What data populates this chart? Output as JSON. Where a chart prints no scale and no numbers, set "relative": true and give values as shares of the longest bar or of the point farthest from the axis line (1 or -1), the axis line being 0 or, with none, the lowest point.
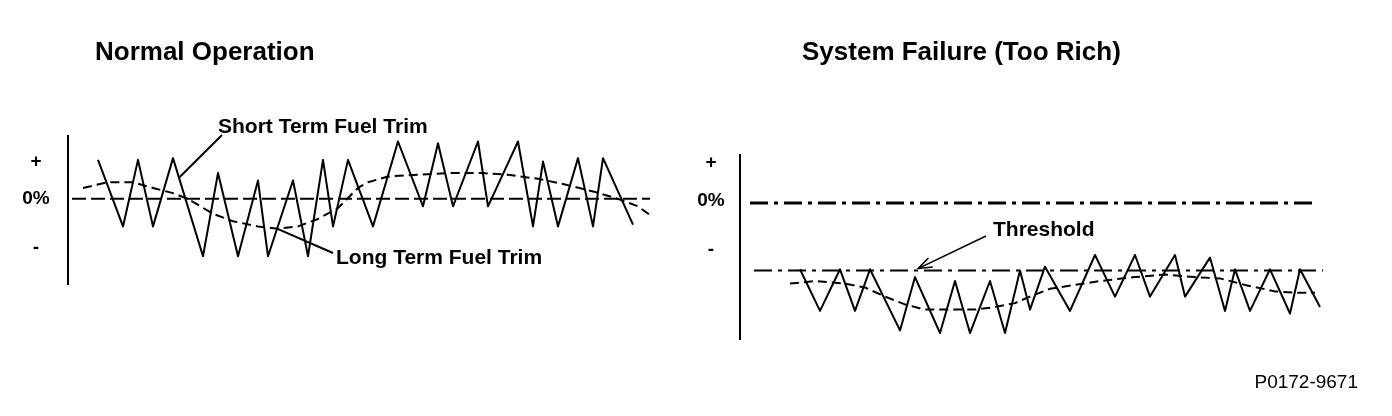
{
  "chart_data": [
    {
      "type": "line",
      "title": "Normal Operation",
      "relative": true,
      "categories": [
        null,
        null,
        null,
        null,
        null,
        null,
        null,
        null,
        null,
        null,
        null,
        null,
        null,
        null,
        null,
        null,
        null,
        null,
        null,
        null,
        null,
        null,
        null,
        null,
        null,
        null,
        null,
        null,
        null,
        null,
        null,
        null,
        null,
        null,
        null,
        null,
        null,
        null,
        null,
        null,
        null,
        null,
        null,
        null,
        null,
        null,
        null,
        null,
        null,
        null,
        null,
        null,
        null,
        null,
        null,
        null,
        null,
        null,
        null,
        null,
        null,
        null,
        null,
        null,
        null,
        null,
        null,
        null,
        null,
        null,
        null,
        null,
        null,
        null,
        null,
        null,
        null,
        null,
        null,
        null,
        null,
        null,
        null,
        null,
        null,
        null,
        null,
        null,
        null,
        null,
        null,
        null,
        null,
        null,
        null,
        null,
        null,
        null,
        null,
        null,
        null,
        null,
        null,
        null,
        null,
        null,
        null,
        null,
        null,
        null,
        null,
        null,
        null,
        null,
        null,
        null,
        null,
        null,
        null
      ],
      "series": [
        {
          "name": "Short Term Fuel Trim",
          "color": "#000000",
          "line_style": "solid",
          "values": [
            null,
            null,
            null,
            null,
            null,
            null,
            0.68,
            null,
            null,
            null,
            null,
            -0.48,
            null,
            null,
            0.68,
            null,
            null,
            -0.48,
            null,
            null,
            null,
            0.71,
            null,
            null,
            null,
            null,
            null,
            -1,
            null,
            null,
            0.45,
            null,
            null,
            null,
            -1,
            null,
            null,
            null,
            0.32,
            null,
            -1,
            null,
            null,
            null,
            null,
            0.32,
            null,
            null,
            -1,
            null,
            null,
            0.68,
            null,
            -0.48,
            null,
            null,
            0.68,
            null,
            null,
            null,
            null,
            -0.48,
            null,
            null,
            null,
            null,
            1,
            null,
            null,
            null,
            null,
            -0.13,
            null,
            null,
            0.97,
            null,
            null,
            -0.13,
            null,
            null,
            null,
            null,
            1,
            null,
            -0.13,
            null,
            null,
            null,
            null,
            null,
            1,
            null,
            null,
            -0.48,
            null,
            0.65,
            null,
            null,
            -0.48,
            null,
            null,
            null,
            0.71,
            null,
            null,
            -0.48,
            null,
            0.71,
            null,
            null,
            null,
            null,
            null,
            -0.45,
            null,
            null,
            null,
            null,
            null
          ]
        },
        {
          "name": "Long Term Fuel Trim",
          "color": "#000000",
          "line_style": "dashed",
          "values": [
            null,
            null,
            null,
            0.19,
            null,
            null,
            null,
            null,
            0.29,
            null,
            null,
            null,
            null,
            0.29,
            null,
            null,
            null,
            0.19,
            null,
            null,
            null,
            0.1,
            null,
            null,
            0,
            null,
            null,
            null,
            null,
            -0.26,
            null,
            null,
            null,
            -0.39,
            null,
            null,
            null,
            null,
            -0.48,
            null,
            null,
            null,
            -0.52,
            null,
            null,
            null,
            -0.48,
            null,
            null,
            null,
            -0.35,
            null,
            null,
            null,
            -0.16,
            null,
            null,
            null,
            0.19,
            null,
            0.29,
            null,
            null,
            null,
            0.39,
            null,
            null,
            null,
            null,
            null,
            0.42,
            null,
            null,
            null,
            null,
            null,
            0.45,
            null,
            null,
            null,
            null,
            null,
            null,
            0.45,
            null,
            null,
            null,
            null,
            0.42,
            null,
            null,
            null,
            null,
            null,
            0.35,
            null,
            null,
            null,
            null,
            0.26,
            null,
            null,
            null,
            null,
            null,
            0.13,
            null,
            null,
            null,
            null,
            0,
            null,
            null,
            null,
            -0.13,
            null,
            null,
            -0.32,
            null
          ]
        }
      ],
      "ref_lines": [
        {
          "axis": "y",
          "value": 0,
          "color": "#000000",
          "line_style": "dashed"
        }
      ],
      "annotations": [
        "+",
        "0%",
        "-"
      ],
      "marker": "none"
    },
    {
      "type": "line",
      "title": "System Failure (Too Rich)",
      "relative": true,
      "categories": [
        null,
        null,
        null,
        null,
        null,
        null,
        null,
        null,
        null,
        null,
        null,
        null,
        null,
        null,
        null,
        null,
        null,
        null,
        null,
        null,
        null,
        null,
        null,
        null,
        null,
        null,
        null,
        null,
        null,
        null,
        null,
        null,
        null,
        null,
        null,
        null,
        null,
        null,
        null,
        null,
        null,
        null,
        null,
        null,
        null,
        null,
        null,
        null,
        null,
        null,
        null,
        null,
        null,
        null,
        null,
        null,
        null,
        null,
        null,
        null,
        null,
        null,
        null,
        null,
        null,
        null,
        null,
        null,
        null,
        null,
        null,
        null,
        null,
        null,
        null,
        null,
        null,
        null,
        null,
        null,
        null,
        null,
        null,
        null,
        null,
        null,
        null,
        null,
        null,
        null,
        null,
        null,
        null,
        null,
        null,
        null,
        null,
        null,
        null,
        null,
        null,
        null,
        null,
        null,
        null,
        null,
        null,
        null,
        null,
        null,
        null,
        null,
        null,
        null,
        null,
        null,
        null,
        null,
        null
      ],
      "series": [
        {
          "color": "#000000",
          "line_style": "solid",
          "values": [
            null,
            null,
            null,
            null,
            null,
            null,
            null,
            null,
            null,
            null,
            null,
            null,
            -0.51,
            null,
            null,
            null,
            -0.83,
            null,
            null,
            null,
            -0.51,
            null,
            null,
            -0.83,
            null,
            null,
            -0.51,
            null,
            null,
            null,
            null,
            null,
            -0.98,
            null,
            null,
            -0.57,
            null,
            null,
            null,
            null,
            -1,
            null,
            null,
            -0.6,
            null,
            null,
            -1,
            null,
            null,
            null,
            -0.6,
            null,
            null,
            -1,
            null,
            null,
            -0.52,
            null,
            -0.82,
            null,
            null,
            -0.49,
            null,
            null,
            null,
            null,
            -0.83,
            null,
            null,
            null,
            null,
            -0.4,
            null,
            null,
            null,
            -0.72,
            null,
            null,
            null,
            -0.4,
            null,
            null,
            -0.72,
            null,
            null,
            null,
            null,
            -0.4,
            null,
            -0.72,
            null,
            null,
            null,
            null,
            -0.42,
            null,
            null,
            -0.83,
            null,
            -0.51,
            null,
            null,
            -0.83,
            null,
            null,
            null,
            -0.51,
            null,
            null,
            null,
            -0.85,
            null,
            -0.51,
            null,
            null,
            null,
            -0.8,
            null,
            null
          ]
        },
        {
          "color": "#000000",
          "line_style": "dashed",
          "values": [
            null,
            null,
            null,
            null,
            null,
            null,
            null,
            null,
            null,
            null,
            -0.62,
            null,
            null,
            null,
            null,
            -0.6,
            null,
            null,
            null,
            null,
            null,
            -0.62,
            null,
            null,
            null,
            -0.65,
            null,
            null,
            null,
            -0.72,
            null,
            null,
            null,
            -0.78,
            null,
            null,
            null,
            -0.82,
            null,
            null,
            null,
            -0.82,
            null,
            null,
            null,
            null,
            null,
            -0.82,
            null,
            null,
            null,
            -0.8,
            null,
            null,
            null,
            -0.77,
            null,
            null,
            -0.72,
            null,
            null,
            null,
            -0.66,
            null,
            null,
            null,
            null,
            -0.63,
            null,
            null,
            null,
            null,
            -0.6,
            null,
            null,
            null,
            null,
            null,
            null,
            -0.57,
            null,
            null,
            null,
            null,
            null,
            -0.55,
            null,
            null,
            null,
            null,
            null,
            -0.57,
            null,
            null,
            null,
            null,
            -0.58,
            null,
            null,
            null,
            null,
            -0.63,
            null,
            null,
            null,
            null,
            null,
            -0.68,
            null,
            null,
            null,
            -0.69,
            null,
            null,
            null,
            -0.69,
            null,
            null,
            null
          ]
        }
      ],
      "ref_lines": [
        {
          "axis": "y",
          "value": 0,
          "color": "#000000",
          "line_style": "dashdot"
        },
        {
          "axis": "y",
          "value": -0.52,
          "label": "Threshold",
          "color": "#000000",
          "line_style": "dashdot"
        }
      ],
      "annotations": [
        "+",
        "0%",
        "-",
        "P0172-9671"
      ],
      "marker": "none"
    }
  ]
}
